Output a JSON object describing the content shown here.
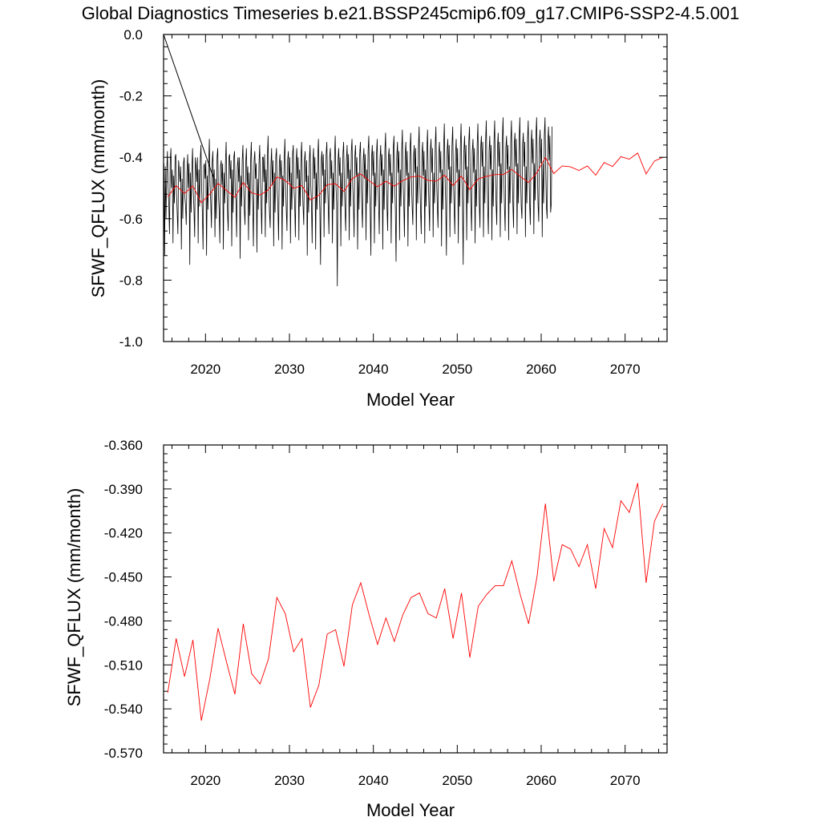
{
  "title": "Global Diagnostics Timeseries b.e21.BSSP245cmip6.f09_g17.CMIP6-SSP2-4.5.001",
  "colors": {
    "monthly": "#000000",
    "annual": "#ff0000"
  },
  "chart_data": [
    {
      "type": "line",
      "xlabel": "Model Year",
      "ylabel": "SFWF_QFLUX (mm/month)",
      "xlim": [
        2015,
        2075
      ],
      "ylim": [
        -1.0,
        0.0
      ],
      "xticks": [
        "2020",
        "2030",
        "2040",
        "2050",
        "2060",
        "2070"
      ],
      "yticks": [
        "0.0",
        "-0.2",
        "-0.4",
        "-0.6",
        "-0.8",
        "-1.0"
      ],
      "series": [
        {
          "kind": "monthly",
          "color": "#000000",
          "segments": [
            {
              "x": [
                2015.0,
                2021.0
              ],
              "y": [
                0.0,
                -0.47
              ]
            }
          ],
          "x_start": 2015.04,
          "step": 0.0833333,
          "values": [
            -0.42,
            -0.72,
            -0.43,
            -0.6,
            -0.45,
            -0.38,
            -0.5,
            -0.55,
            -0.65,
            -0.42,
            -0.37,
            -0.5,
            -0.44,
            -0.68,
            -0.46,
            -0.55,
            -0.4,
            -0.39,
            -0.52,
            -0.58,
            -0.65,
            -0.41,
            -0.44,
            -0.48,
            -0.43,
            -0.7,
            -0.47,
            -0.6,
            -0.42,
            -0.4,
            -0.53,
            -0.56,
            -0.62,
            -0.45,
            -0.39,
            -0.5,
            -0.42,
            -0.75,
            -0.45,
            -0.58,
            -0.44,
            -0.37,
            -0.51,
            -0.57,
            -0.66,
            -0.4,
            -0.43,
            -0.48,
            -0.4,
            -0.68,
            -0.44,
            -0.56,
            -0.41,
            -0.36,
            -0.5,
            -0.58,
            -0.7,
            -0.43,
            -0.42,
            -0.47,
            -0.41,
            -0.72,
            -0.46,
            -0.57,
            -0.43,
            -0.34,
            -0.49,
            -0.55,
            -0.63,
            -0.42,
            -0.38,
            -0.5,
            -0.44,
            -0.66,
            -0.47,
            -0.6,
            -0.4,
            -0.37,
            -0.52,
            -0.57,
            -0.68,
            -0.43,
            -0.41,
            -0.49,
            -0.42,
            -0.7,
            -0.45,
            -0.55,
            -0.42,
            -0.35,
            -0.5,
            -0.58,
            -0.64,
            -0.4,
            -0.39,
            -0.47,
            -0.41,
            -0.69,
            -0.44,
            -0.58,
            -0.4,
            -0.38,
            -0.51,
            -0.54,
            -0.66,
            -0.43,
            -0.4,
            -0.48,
            -0.4,
            -0.73,
            -0.46,
            -0.56,
            -0.41,
            -0.36,
            -0.49,
            -0.57,
            -0.62,
            -0.42,
            -0.37,
            -0.49,
            -0.43,
            -0.67,
            -0.45,
            -0.59,
            -0.41,
            -0.35,
            -0.5,
            -0.55,
            -0.69,
            -0.41,
            -0.38,
            -0.47,
            -0.42,
            -0.71,
            -0.47,
            -0.57,
            -0.42,
            -0.36,
            -0.48,
            -0.56,
            -0.65,
            -0.4,
            -0.4,
            -0.48,
            -0.39,
            -0.66,
            -0.44,
            -0.55,
            -0.4,
            -0.33,
            -0.5,
            -0.58,
            -0.63,
            -0.43,
            -0.37,
            -0.49,
            -0.41,
            -0.69,
            -0.45,
            -0.58,
            -0.4,
            -0.37,
            -0.51,
            -0.56,
            -0.67,
            -0.42,
            -0.39,
            -0.47,
            -0.41,
            -0.7,
            -0.46,
            -0.56,
            -0.41,
            -0.34,
            -0.49,
            -0.57,
            -0.64,
            -0.41,
            -0.38,
            -0.48,
            -0.4,
            -0.68,
            -0.45,
            -0.57,
            -0.39,
            -0.36,
            -0.5,
            -0.55,
            -0.66,
            -0.42,
            -0.37,
            -0.47,
            -0.4,
            -0.67,
            -0.44,
            -0.56,
            -0.4,
            -0.35,
            -0.49,
            -0.56,
            -0.62,
            -0.41,
            -0.38,
            -0.48,
            -0.41,
            -0.72,
            -0.46,
            -0.58,
            -0.41,
            -0.36,
            -0.49,
            -0.55,
            -0.68,
            -0.42,
            -0.37,
            -0.47,
            -0.4,
            -0.7,
            -0.45,
            -0.57,
            -0.4,
            -0.34,
            -0.5,
            -0.57,
            -0.75,
            -0.41,
            -0.38,
            -0.46,
            -0.39,
            -0.66,
            -0.44,
            -0.55,
            -0.39,
            -0.35,
            -0.48,
            -0.56,
            -0.65,
            -0.4,
            -0.37,
            -0.47,
            -0.41,
            -0.68,
            -0.45,
            -0.57,
            -0.4,
            -0.33,
            -0.49,
            -0.55,
            -0.82,
            -0.41,
            -0.37,
            -0.46,
            -0.4,
            -0.69,
            -0.45,
            -0.56,
            -0.39,
            -0.35,
            -0.48,
            -0.57,
            -0.64,
            -0.41,
            -0.36,
            -0.47,
            -0.39,
            -0.67,
            -0.44,
            -0.56,
            -0.38,
            -0.34,
            -0.49,
            -0.55,
            -0.66,
            -0.4,
            -0.36,
            -0.46,
            -0.4,
            -0.7,
            -0.45,
            -0.57,
            -0.39,
            -0.35,
            -0.48,
            -0.56,
            -0.63,
            -0.41,
            -0.37,
            -0.47,
            -0.39,
            -0.67,
            -0.44,
            -0.55,
            -0.38,
            -0.33,
            -0.49,
            -0.57,
            -0.72,
            -0.4,
            -0.36,
            -0.46,
            -0.38,
            -0.68,
            -0.45,
            -0.56,
            -0.39,
            -0.34,
            -0.48,
            -0.55,
            -0.65,
            -0.41,
            -0.36,
            -0.46,
            -0.39,
            -0.7,
            -0.44,
            -0.57,
            -0.38,
            -0.32,
            -0.47,
            -0.56,
            -0.64,
            -0.4,
            -0.37,
            -0.46,
            -0.39,
            -0.68,
            -0.45,
            -0.55,
            -0.37,
            -0.33,
            -0.48,
            -0.57,
            -0.74,
            -0.4,
            -0.35,
            -0.45,
            -0.38,
            -0.67,
            -0.44,
            -0.56,
            -0.38,
            -0.31,
            -0.48,
            -0.55,
            -0.66,
            -0.39,
            -0.35,
            -0.46,
            -0.38,
            -0.69,
            -0.45,
            -0.56,
            -0.37,
            -0.32,
            -0.47,
            -0.56,
            -0.62,
            -0.4,
            -0.36,
            -0.45,
            -0.37,
            -0.67,
            -0.43,
            -0.55,
            -0.37,
            -0.3,
            -0.48,
            -0.57,
            -0.65,
            -0.39,
            -0.35,
            -0.46,
            -0.38,
            -0.68,
            -0.44,
            -0.56,
            -0.38,
            -0.31,
            -0.47,
            -0.55,
            -0.64,
            -0.38,
            -0.34,
            -0.45,
            -0.37,
            -0.66,
            -0.45,
            -0.55,
            -0.36,
            -0.3,
            -0.47,
            -0.56,
            -0.63,
            -0.39,
            -0.35,
            -0.45,
            -0.38,
            -0.69,
            -0.44,
            -0.57,
            -0.37,
            -0.29,
            -0.46,
            -0.55,
            -0.72,
            -0.38,
            -0.34,
            -0.44,
            -0.36,
            -0.66,
            -0.43,
            -0.55,
            -0.36,
            -0.3,
            -0.47,
            -0.56,
            -0.65,
            -0.39,
            -0.34,
            -0.45,
            -0.37,
            -0.68,
            -0.44,
            -0.56,
            -0.36,
            -0.29,
            -0.46,
            -0.55,
            -0.75,
            -0.38,
            -0.33,
            -0.44,
            -0.36,
            -0.67,
            -0.43,
            -0.55,
            -0.35,
            -0.3,
            -0.46,
            -0.56,
            -0.64,
            -0.38,
            -0.34,
            -0.45,
            -0.37,
            -0.68,
            -0.44,
            -0.56,
            -0.36,
            -0.29,
            -0.45,
            -0.55,
            -0.63,
            -0.37,
            -0.33,
            -0.43,
            -0.35,
            -0.66,
            -0.43,
            -0.55,
            -0.35,
            -0.28,
            -0.46,
            -0.56,
            -0.65,
            -0.38,
            -0.33,
            -0.44,
            -0.36,
            -0.67,
            -0.44,
            -0.56,
            -0.35,
            -0.28,
            -0.45,
            -0.55,
            -0.62,
            -0.37,
            -0.32,
            -0.43,
            -0.35,
            -0.66,
            -0.42,
            -0.55,
            -0.34,
            -0.27,
            -0.45,
            -0.56,
            -0.64,
            -0.37,
            -0.33,
            -0.44,
            -0.36,
            -0.67,
            -0.43,
            -0.55,
            -0.35,
            -0.28,
            -0.44,
            -0.55,
            -0.63,
            -0.36,
            -0.32,
            -0.43,
            -0.34,
            -0.65,
            -0.42,
            -0.55,
            -0.34,
            -0.27,
            -0.45,
            -0.56,
            -0.6,
            -0.36,
            -0.32,
            -0.43,
            -0.35,
            -0.66,
            -0.43,
            -0.55,
            -0.34,
            -0.28,
            -0.44,
            -0.55,
            -0.62,
            -0.36,
            -0.31,
            -0.42,
            -0.34,
            -0.65,
            -0.42,
            -0.54,
            -0.33,
            -0.27,
            -0.44,
            -0.55,
            -0.61,
            -0.35,
            -0.31,
            -0.42,
            -0.34,
            -0.66,
            -0.42,
            -0.55,
            -0.33,
            -0.27,
            -0.44,
            -0.56,
            -0.6,
            -0.35,
            -0.3,
            -0.41,
            -0.33,
            -0.58,
            -0.55,
            -0.3
          ]
        },
        {
          "kind": "annual",
          "color": "#ff0000",
          "x": [
            2015.5,
            2016.5,
            2017.5,
            2018.5,
            2019.5,
            2020.5,
            2021.5,
            2022.5,
            2023.5,
            2024.5,
            2025.5,
            2026.5,
            2027.5,
            2028.5,
            2029.5,
            2030.5,
            2031.5,
            2032.5,
            2033.5,
            2034.5,
            2035.5,
            2036.5,
            2037.5,
            2038.5,
            2039.5,
            2040.5,
            2041.5,
            2042.5,
            2043.5,
            2044.5,
            2045.5,
            2046.5,
            2047.5,
            2048.5,
            2049.5,
            2050.5,
            2051.5,
            2052.5,
            2053.5,
            2054.5,
            2055.5,
            2056.5,
            2057.5,
            2058.5,
            2059.5,
            2060.5,
            2061.5,
            2062.5,
            2063.5,
            2064.5,
            2065.5,
            2066.5,
            2067.5,
            2068.5,
            2069.5,
            2070.5,
            2071.5,
            2072.5,
            2073.5,
            2074.5
          ],
          "y": [
            -0.529,
            -0.492,
            -0.518,
            -0.493,
            -0.548,
            -0.52,
            -0.485,
            -0.508,
            -0.53,
            -0.482,
            -0.516,
            -0.523,
            -0.506,
            -0.464,
            -0.475,
            -0.501,
            -0.492,
            -0.539,
            -0.524,
            -0.489,
            -0.486,
            -0.511,
            -0.469,
            -0.454,
            -0.476,
            -0.496,
            -0.478,
            -0.494,
            -0.476,
            -0.464,
            -0.461,
            -0.475,
            -0.478,
            -0.458,
            -0.492,
            -0.461,
            -0.505,
            -0.47,
            -0.462,
            -0.456,
            -0.456,
            -0.439,
            -0.462,
            -0.482,
            -0.45,
            -0.4,
            -0.453,
            -0.428,
            -0.431,
            -0.443,
            -0.428,
            -0.458,
            -0.417,
            -0.43,
            -0.398,
            -0.406,
            -0.386,
            -0.454,
            -0.412,
            -0.4
          ]
        }
      ]
    },
    {
      "type": "line",
      "xlabel": "Model Year",
      "ylabel": "SFWF_QFLUX (mm/month)",
      "xlim": [
        2015,
        2075
      ],
      "ylim": [
        -0.57,
        -0.36
      ],
      "xticks": [
        "2020",
        "2030",
        "2040",
        "2050",
        "2060",
        "2070"
      ],
      "yticks": [
        "-0.360",
        "-0.390",
        "-0.420",
        "-0.450",
        "-0.480",
        "-0.510",
        "-0.540",
        "-0.570"
      ],
      "series": [
        {
          "kind": "annual",
          "color": "#ff0000",
          "x": [
            2015.5,
            2016.5,
            2017.5,
            2018.5,
            2019.5,
            2020.5,
            2021.5,
            2022.5,
            2023.5,
            2024.5,
            2025.5,
            2026.5,
            2027.5,
            2028.5,
            2029.5,
            2030.5,
            2031.5,
            2032.5,
            2033.5,
            2034.5,
            2035.5,
            2036.5,
            2037.5,
            2038.5,
            2039.5,
            2040.5,
            2041.5,
            2042.5,
            2043.5,
            2044.5,
            2045.5,
            2046.5,
            2047.5,
            2048.5,
            2049.5,
            2050.5,
            2051.5,
            2052.5,
            2053.5,
            2054.5,
            2055.5,
            2056.5,
            2057.5,
            2058.5,
            2059.5,
            2060.5,
            2061.5,
            2062.5,
            2063.5,
            2064.5,
            2065.5,
            2066.5,
            2067.5,
            2068.5,
            2069.5,
            2070.5,
            2071.5,
            2072.5,
            2073.5,
            2074.5
          ],
          "y": [
            -0.529,
            -0.492,
            -0.518,
            -0.493,
            -0.548,
            -0.52,
            -0.485,
            -0.508,
            -0.53,
            -0.482,
            -0.516,
            -0.523,
            -0.506,
            -0.464,
            -0.475,
            -0.501,
            -0.492,
            -0.539,
            -0.524,
            -0.489,
            -0.486,
            -0.511,
            -0.469,
            -0.454,
            -0.476,
            -0.496,
            -0.478,
            -0.494,
            -0.476,
            -0.464,
            -0.461,
            -0.475,
            -0.478,
            -0.458,
            -0.492,
            -0.461,
            -0.505,
            -0.47,
            -0.462,
            -0.456,
            -0.456,
            -0.439,
            -0.462,
            -0.482,
            -0.45,
            -0.4,
            -0.453,
            -0.428,
            -0.431,
            -0.443,
            -0.428,
            -0.458,
            -0.417,
            -0.43,
            -0.398,
            -0.406,
            -0.386,
            -0.454,
            -0.412,
            -0.4
          ]
        }
      ]
    }
  ]
}
